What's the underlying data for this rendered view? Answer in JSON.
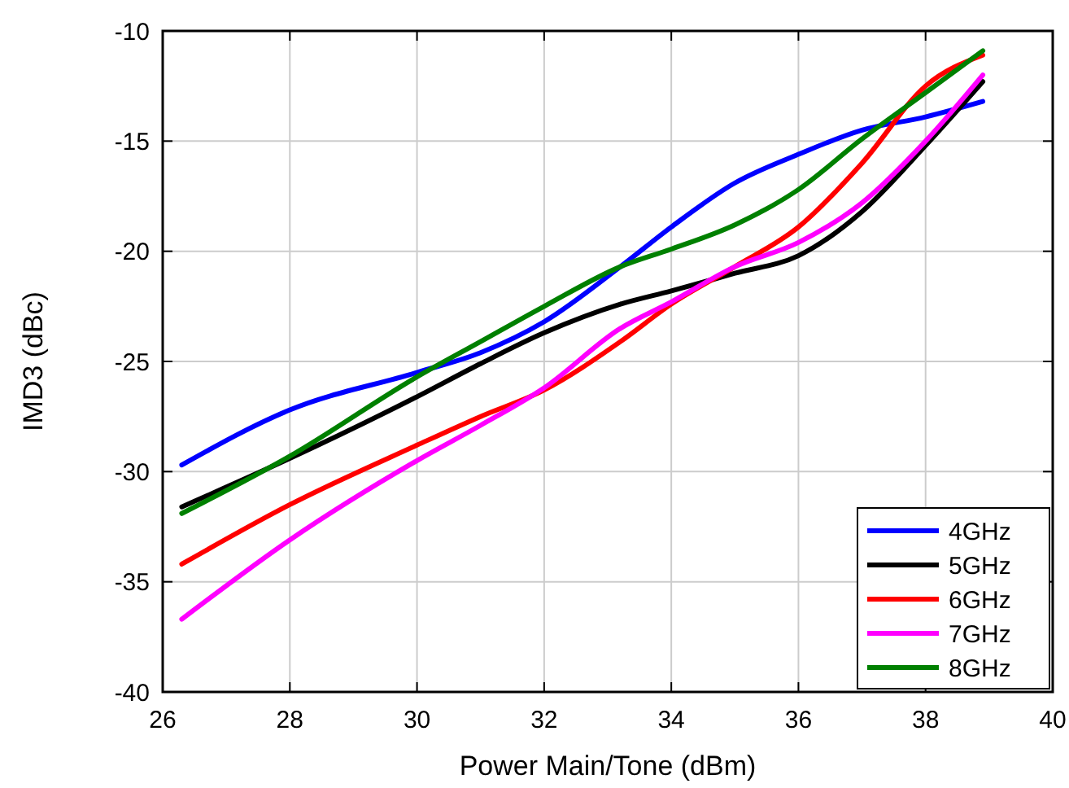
{
  "chart_data": {
    "type": "line",
    "xlabel": "Power  Main/Tone (dBm)",
    "ylabel": "IMD3 (dBc)",
    "x": [
      26.3,
      28,
      30,
      31,
      32,
      33.2,
      34,
      35,
      36,
      37,
      38,
      38.9
    ],
    "series": [
      {
        "name": "4GHz",
        "color": "#0000ff",
        "values": [
          -29.7,
          -27.2,
          -25.5,
          -24.6,
          -23.2,
          -20.7,
          -18.9,
          -16.9,
          -15.6,
          -14.5,
          -13.9,
          -13.2
        ]
      },
      {
        "name": "5GHz",
        "color": "#000000",
        "values": [
          -31.6,
          -29.4,
          -26.6,
          -25.1,
          -23.7,
          -22.4,
          -21.8,
          -21.0,
          -20.2,
          -18.2,
          -15.2,
          -12.3
        ]
      },
      {
        "name": "6GHz",
        "color": "#ff0000",
        "values": [
          -34.2,
          -31.5,
          -28.8,
          -27.5,
          -26.3,
          -24.1,
          -22.4,
          -20.7,
          -18.9,
          -16.0,
          -12.5,
          -11.1
        ]
      },
      {
        "name": "7GHz",
        "color": "#ff00ff",
        "values": [
          -36.7,
          -33.1,
          -29.5,
          -27.9,
          -26.2,
          -23.5,
          -22.3,
          -20.7,
          -19.6,
          -17.8,
          -15.0,
          -12.0
        ]
      },
      {
        "name": "8GHz",
        "color": "#008000",
        "values": [
          -31.9,
          -29.3,
          -25.7,
          -24.1,
          -22.5,
          -20.7,
          -19.9,
          -18.8,
          -17.2,
          -14.9,
          -12.8,
          -10.9
        ]
      }
    ],
    "xlim": [
      26,
      40
    ],
    "xticks": [
      26,
      28,
      30,
      32,
      34,
      36,
      38,
      40
    ],
    "ylim": [
      -40,
      -10
    ],
    "yticks": [
      -40,
      -35,
      -30,
      -25,
      -20,
      -15,
      -10
    ],
    "grid": true,
    "legend": "bottom right",
    "marker": "none",
    "line_style": "solid"
  }
}
